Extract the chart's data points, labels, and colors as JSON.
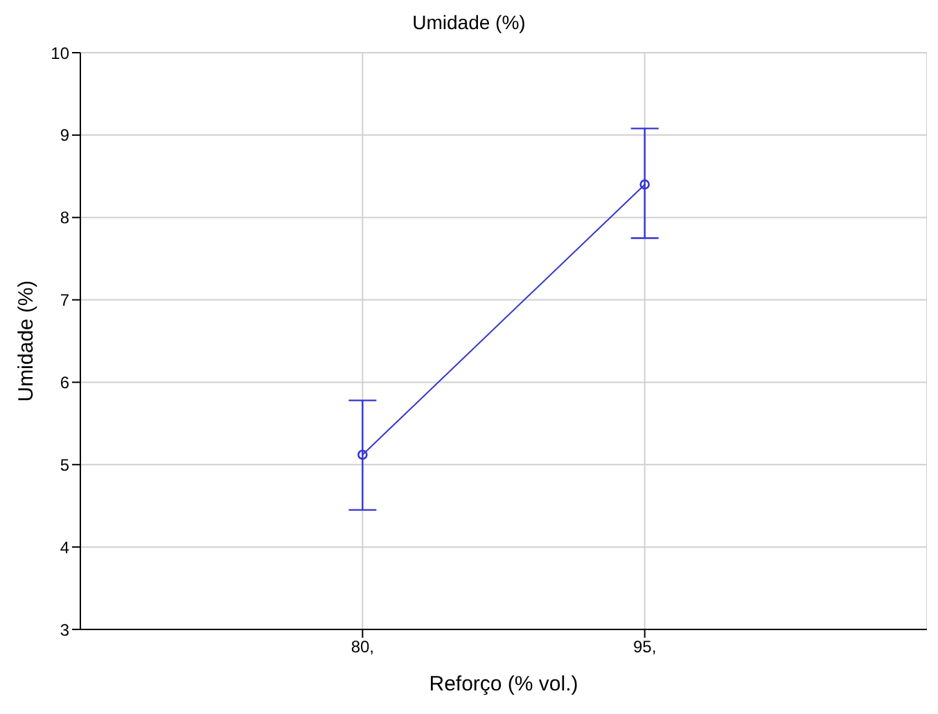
{
  "chart_data": {
    "type": "line",
    "title": "Umidade (%)",
    "xlabel": "Reforço (% vol.)",
    "ylabel": "Umidade (%)",
    "x": [
      80,
      95
    ],
    "series": [
      {
        "color": "#3535d0",
        "values": [
          5.12,
          8.4
        ],
        "errors": [
          [
            4.45,
            5.78
          ],
          [
            7.75,
            9.08
          ]
        ]
      }
    ],
    "xlim": [
      65,
      110
    ],
    "xticks": [
      {
        "value": 80,
        "label": "80,"
      },
      {
        "value": 95,
        "label": "95,"
      }
    ],
    "ylim": [
      3,
      10
    ],
    "yticks": [
      3,
      4,
      5,
      6,
      7,
      8,
      9,
      10
    ],
    "grid": true,
    "marker": "circle",
    "line_style": "solid"
  }
}
